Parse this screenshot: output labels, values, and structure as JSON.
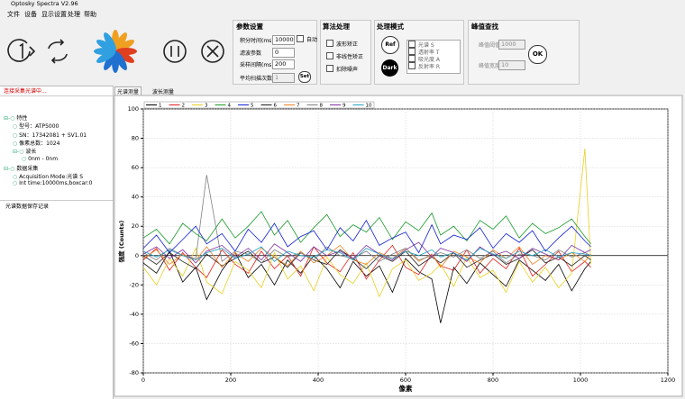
{
  "ui": {
    "window_title": "Optosky Spectra V2.96",
    "menu": [
      "文件",
      "设备",
      "显示设置",
      "处理",
      "帮助"
    ],
    "params": {
      "title": "参数设置",
      "integration_label": "积分时间(ms)",
      "integration_value": 10000,
      "auto": "自动",
      "filter_label": "滤波参数",
      "filter_value": 0,
      "interval_label": "采样间隔(ms)",
      "interval_value": 200,
      "average_label": "平均扫描次数",
      "average_value": 1,
      "set": "Set"
    },
    "algorithm": {
      "title": "算法处理",
      "options": [
        "波形矫正",
        "非线性矫正",
        "扣除噪声"
      ]
    },
    "mode": {
      "title": "处理模式",
      "ref": "Ref",
      "dark": "Dark",
      "options": [
        "光谱 S",
        "透射率 T",
        "吸光度 A",
        "反射率 R"
      ]
    },
    "peak": {
      "title": "峰值查找",
      "threshold_label": "峰值阈值",
      "threshold_value": 1000,
      "width_label": "峰值宽度",
      "width_value": 10,
      "ok": "OK"
    },
    "status": "连接采集光谱中...",
    "tree": [
      {
        "label": "特性",
        "children": [
          {
            "label": "型号：ATP5000"
          },
          {
            "label": "SN：17342081 + SV1.01"
          },
          {
            "label": "像素总数：1024"
          },
          {
            "label": "波长",
            "children": [
              {
                "label": "0nm - 0nm"
              }
            ]
          }
        ]
      },
      {
        "label": "数据采集",
        "children": [
          {
            "label": "Acquisition Mode:光谱 S"
          },
          {
            "label": "Int time:10000ms,boxcar:0"
          }
        ]
      }
    ],
    "log_title": "光谱数据保存记录",
    "tabs": [
      "光谱测量",
      "波长测量"
    ]
  },
  "chart_data": {
    "type": "line",
    "x_label": "像素",
    "y_label": "强度 (Counts)",
    "x": [
      0,
      30,
      60,
      90,
      120,
      145,
      180,
      210,
      240,
      270,
      300,
      330,
      360,
      390,
      420,
      450,
      480,
      510,
      540,
      570,
      600,
      630,
      660,
      680,
      710,
      740,
      770,
      800,
      830,
      860,
      890,
      920,
      950,
      980,
      1010,
      1024
    ],
    "xlim": [
      0,
      1200
    ],
    "xticks": [
      0,
      200,
      400,
      600,
      800,
      1000,
      1200
    ],
    "ylim": [
      -80,
      100
    ],
    "yticks": [
      -80,
      -60,
      -40,
      -20,
      0,
      20,
      40,
      60,
      80,
      100
    ],
    "grid": true,
    "legend": "top-left",
    "series": [
      {
        "name": "1",
        "color": "#000000",
        "values": [
          -5,
          -12,
          3,
          -18,
          -8,
          -30,
          -10,
          2,
          -15,
          -6,
          -20,
          -3,
          -12,
          0,
          -9,
          -22,
          -4,
          -14,
          -7,
          -25,
          -2,
          -11,
          -16,
          -46,
          -8,
          -19,
          -5,
          -13,
          -21,
          -3,
          -10,
          -17,
          -6,
          -24,
          -9,
          -4
        ]
      },
      {
        "name": "2",
        "color": "#e02020",
        "values": [
          -3,
          5,
          -10,
          2,
          -8,
          -15,
          4,
          -6,
          -12,
          3,
          -9,
          0,
          -14,
          6,
          -5,
          -11,
          2,
          -16,
          -3,
          7,
          -8,
          -13,
          1,
          -7,
          -10,
          4,
          -12,
          -2,
          -9,
          5,
          -14,
          -6,
          3,
          -11,
          -4,
          -8
        ]
      },
      {
        "name": "3",
        "color": "#e8d020",
        "values": [
          -8,
          -20,
          -2,
          -14,
          5,
          -18,
          -26,
          -4,
          -10,
          -22,
          2,
          -16,
          -7,
          -24,
          -1,
          -13,
          -19,
          -5,
          -28,
          -9,
          -3,
          -17,
          -12,
          -6,
          -21,
          -1,
          -15,
          -10,
          -25,
          -4,
          -18,
          -8,
          -22,
          -12,
          73,
          -6
        ]
      },
      {
        "name": "4",
        "color": "#1a9a2a",
        "values": [
          12,
          18,
          8,
          22,
          15,
          10,
          25,
          12,
          20,
          30,
          14,
          24,
          9,
          19,
          28,
          13,
          21,
          16,
          26,
          11,
          23,
          17,
          29,
          14,
          20,
          10,
          24,
          18,
          27,
          12,
          22,
          15,
          19,
          25,
          13,
          8
        ]
      },
      {
        "name": "5",
        "color": "#1020d0",
        "values": [
          5,
          14,
          2,
          11,
          20,
          8,
          15,
          3,
          18,
          9,
          22,
          6,
          13,
          17,
          4,
          19,
          10,
          24,
          7,
          12,
          16,
          2,
          21,
          8,
          14,
          11,
          19,
          5,
          15,
          9,
          17,
          3,
          12,
          20,
          10,
          6
        ]
      },
      {
        "name": "6",
        "color": "#202020",
        "values": [
          0,
          -6,
          2,
          -4,
          -9,
          1,
          -7,
          -2,
          3,
          -5,
          -1,
          -8,
          2,
          -3,
          -6,
          4,
          -2,
          -9,
          0,
          -4,
          3,
          -7,
          -1,
          -5,
          2,
          -8,
          -3,
          1,
          -6,
          -2,
          4,
          -5,
          -1,
          -7,
          0,
          -3
        ]
      },
      {
        "name": "7",
        "color": "#f08020",
        "values": [
          -2,
          4,
          -6,
          1,
          -3,
          6,
          -8,
          2,
          -4,
          5,
          -1,
          -7,
          3,
          -5,
          0,
          7,
          -3,
          -6,
          2,
          -2,
          5,
          -4,
          1,
          -8,
          3,
          -1,
          -5,
          4,
          -2,
          6,
          -6,
          0,
          -3,
          2,
          -4,
          1
        ]
      },
      {
        "name": "8",
        "color": "#808080",
        "values": [
          2,
          -3,
          5,
          0,
          -2,
          55,
          -4,
          3,
          1,
          -5,
          4,
          -1,
          2,
          -3,
          6,
          0,
          -2,
          3,
          -4,
          1,
          5,
          -3,
          0,
          2,
          -1,
          4,
          -2,
          3,
          -5,
          1,
          0,
          -3,
          4,
          -1,
          2,
          0
        ]
      },
      {
        "name": "9",
        "color": "#8030a0",
        "values": [
          1,
          6,
          -2,
          4,
          -5,
          3,
          7,
          -1,
          5,
          -3,
          8,
          2,
          -4,
          6,
          0,
          3,
          -2,
          7,
          1,
          -3,
          4,
          9,
          -1,
          5,
          2,
          -4,
          6,
          0,
          3,
          -2,
          5,
          1,
          -3,
          7,
          2,
          4
        ]
      },
      {
        "name": "10",
        "color": "#20a0c0",
        "values": [
          3,
          -1,
          4,
          0,
          -3,
          2,
          5,
          -2,
          1,
          6,
          -4,
          3,
          0,
          -1,
          4,
          2,
          -3,
          5,
          1,
          -2,
          3,
          0,
          4,
          -1,
          2,
          -3,
          5,
          1,
          -2,
          3,
          0,
          4,
          -1,
          2,
          1,
          0
        ]
      }
    ]
  }
}
